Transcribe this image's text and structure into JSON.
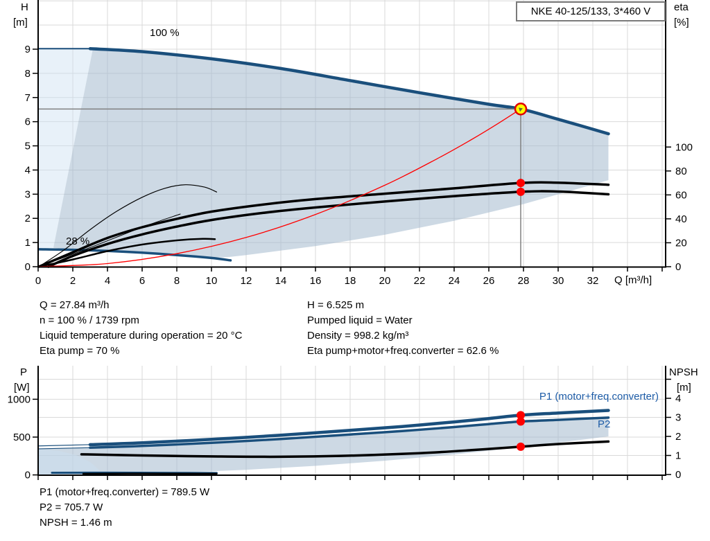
{
  "title_box": "NKE 40-125/133, 3*460 V",
  "colors": {
    "navy": "#1a4f7c",
    "red": "#ff0000",
    "yellow": "#ffff00",
    "label_blue": "#1c5ba6",
    "grid": "#d9d9d9",
    "axis": "#000000",
    "crosshair": "#808080",
    "fill_light": "rgba(205,224,242,0.45)",
    "fill_range": "rgba(164,186,205,0.55)"
  },
  "top_chart": {
    "y_left_title_1": "H",
    "y_left_title_2": "[m]",
    "y_right_title_1": "eta",
    "y_right_title_2": "[%]",
    "x_axis_title": "Q [m³/h]",
    "label_max_speed": "100 %",
    "label_min_speed": "28 %"
  },
  "bottom_chart": {
    "y_left_title_1": "P",
    "y_left_title_2": "[W]",
    "y_right_title_1": "NPSH",
    "y_right_title_2": "[m]",
    "label_p1": "P1 (motor+freq.converter)",
    "label_p2": "P2"
  },
  "info_top_left": [
    "Q = 27.84 m³/h",
    "n = 100 % / 1739 rpm",
    "Liquid temperature during operation = 20 °C",
    "Eta pump = 70 %"
  ],
  "info_top_right": [
    "H = 6.525 m",
    "Pumped liquid = Water",
    "Density = 998.2 kg/m³",
    "Eta pump+motor+freq.converter = 62.6 %"
  ],
  "info_bottom": [
    "P1 (motor+freq.converter) = 789.5 W",
    "P2 = 705.7 W",
    "NPSH = 1.46 m"
  ],
  "chart_data": [
    {
      "type": "line",
      "title": "QH curve with efficiency",
      "xlabel": "Q [m³/h]",
      "ylabel_left": "H [m]",
      "ylabel_right": "eta [%]",
      "x_range": [
        0,
        36.2
      ],
      "y_left_range": [
        0,
        11
      ],
      "y_right_range": [
        0,
        100
      ],
      "grid": true,
      "x_ticks": [
        0,
        2,
        4,
        6,
        8,
        10,
        12,
        14,
        16,
        18,
        20,
        22,
        24,
        26,
        28,
        30,
        32
      ],
      "y_left_ticks": [
        0,
        1,
        2,
        3,
        4,
        5,
        6,
        7,
        8,
        9
      ],
      "y_right_ticks": [
        0,
        20,
        40,
        60,
        80,
        100
      ],
      "duty_point": {
        "q": 27.84,
        "h": 6.525
      },
      "series": [
        {
          "name": "head-100-lead",
          "axis": "h",
          "color": "#1a4f7c",
          "width": 2,
          "q": [
            0.04,
            3.0
          ],
          "v": [
            9.02,
            9.02
          ]
        },
        {
          "name": "head-100",
          "axis": "h",
          "color": "#1a4f7c",
          "width": 4.5,
          "q": [
            3.0,
            6,
            10,
            14,
            18,
            22,
            26,
            27.84,
            30,
            32.9
          ],
          "v": [
            9.02,
            8.9,
            8.6,
            8.2,
            7.7,
            7.2,
            6.72,
            6.525,
            6.1,
            5.5
          ]
        },
        {
          "name": "head-28",
          "axis": "h",
          "color": "#1a4f7c",
          "width": 3.5,
          "q": [
            0.04,
            2,
            4,
            6,
            8,
            10,
            11.1
          ],
          "v": [
            0.72,
            0.7,
            0.65,
            0.58,
            0.48,
            0.36,
            0.26
          ]
        },
        {
          "name": "eta-pump",
          "axis": "eta",
          "color": "#000000",
          "width": 3.5,
          "q": [
            0.04,
            2,
            4,
            6,
            8,
            10,
            13,
            16,
            20,
            24,
            27.84,
            30,
            32.9
          ],
          "v": [
            0,
            12,
            24,
            33,
            40,
            46,
            52,
            56.5,
            61,
            65.5,
            70,
            70.2,
            68.5
          ]
        },
        {
          "name": "eta-pump-motor-freq",
          "axis": "eta",
          "color": "#000000",
          "width": 3.5,
          "q": [
            0.6,
            2,
            4,
            6,
            8,
            10,
            13,
            16,
            20,
            24,
            27.84,
            30,
            32.9
          ],
          "v": [
            0,
            9,
            19,
            27,
            33.5,
            39,
            45,
            49.5,
            54.5,
            59,
            62.6,
            62.8,
            60.5
          ]
        },
        {
          "name": "eta-pump-reduced",
          "axis": "eta",
          "color": "#000000",
          "width": 1.2,
          "q": [
            0.04,
            1.5,
            3,
            4.5,
            6,
            7.3,
            8.5,
            9.6,
            10.3
          ],
          "v": [
            0,
            14,
            31,
            46,
            58,
            65.5,
            68.5,
            66.5,
            62.4
          ]
        },
        {
          "name": "eta-total-reduced",
          "axis": "eta",
          "color": "#000000",
          "width": 2.5,
          "q": [
            0.04,
            2,
            4,
            6,
            8,
            9.5,
            10.2
          ],
          "v": [
            0,
            6,
            13,
            18.5,
            22,
            23.3,
            23.0
          ]
        },
        {
          "name": "eta-strand",
          "axis": "eta",
          "color": "#000000",
          "width": 1,
          "q": [
            0.04,
            3,
            6,
            8.2
          ],
          "v": [
            0,
            16,
            33,
            44
          ]
        },
        {
          "name": "control-curve",
          "axis": "h",
          "color": "#ff0000",
          "width": 1.3,
          "q": [
            0,
            4,
            8,
            12,
            16,
            20,
            23,
            25,
            26.5,
            27.84
          ],
          "v": [
            0,
            0.13,
            0.54,
            1.21,
            2.16,
            3.37,
            4.46,
            5.26,
            5.91,
            6.525
          ]
        }
      ],
      "markers": [
        {
          "axis": "eta",
          "q": 27.84,
          "v": 70
        },
        {
          "axis": "eta",
          "q": 27.84,
          "v": 62.6
        }
      ],
      "envelope": [
        [
          3.16,
          9.02
        ],
        [
          6,
          8.9
        ],
        [
          10,
          8.6
        ],
        [
          14,
          8.2
        ],
        [
          18,
          7.7
        ],
        [
          22,
          7.2
        ],
        [
          26,
          6.72
        ],
        [
          27.84,
          6.525
        ],
        [
          30,
          6.1
        ],
        [
          32.9,
          5.5
        ],
        [
          32.9,
          3.58
        ],
        [
          28,
          2.59
        ],
        [
          24,
          1.9
        ],
        [
          20,
          1.32
        ],
        [
          16,
          0.85
        ],
        [
          12,
          0.48
        ],
        [
          11.1,
          0.41
        ],
        [
          10,
          0.36
        ],
        [
          8,
          0.48
        ],
        [
          6,
          0.58
        ],
        [
          4,
          0.65
        ],
        [
          2,
          0.7
        ],
        [
          0.88,
          0.78
        ]
      ],
      "light_region": [
        [
          0.04,
          9.02
        ],
        [
          3.16,
          9.02
        ],
        [
          0.88,
          0.78
        ],
        [
          0.04,
          0.72
        ]
      ]
    },
    {
      "type": "line",
      "title": "Power and NPSH curves",
      "xlabel": "Q [m³/h]",
      "ylabel_left": "P [W]",
      "ylabel_right": "NPSH [m]",
      "x_range": [
        0,
        36.2
      ],
      "y_left_range": [
        0,
        1450
      ],
      "y_right_range": [
        0,
        5.7
      ],
      "grid": true,
      "y_left_ticks": [
        0,
        500,
        1000
      ],
      "y_right_ticks": [
        0,
        1,
        2,
        3,
        4
      ],
      "series": [
        {
          "name": "p1-lead",
          "axis": "p",
          "color": "#1a4f7c",
          "width": 1.2,
          "q": [
            0.04,
            3
          ],
          "v": [
            383,
            400
          ]
        },
        {
          "name": "p2-lead",
          "axis": "p",
          "color": "#1a4f7c",
          "width": 1.2,
          "q": [
            0.04,
            3
          ],
          "v": [
            345,
            360
          ]
        },
        {
          "name": "p1",
          "axis": "p",
          "color": "#1a4f7c",
          "width": 4.5,
          "q": [
            3,
            6,
            10,
            14,
            18,
            21,
            24,
            26,
            27.84,
            30,
            32.9
          ],
          "v": [
            400,
            425,
            470,
            525,
            590,
            640,
            700,
            745,
            789.5,
            818,
            852
          ]
        },
        {
          "name": "p2",
          "axis": "p",
          "color": "#1a4f7c",
          "width": 3.5,
          "q": [
            3,
            6,
            10,
            14,
            18,
            21,
            24,
            26,
            27.84,
            30,
            32.9
          ],
          "v": [
            360,
            383,
            425,
            475,
            535,
            580,
            633,
            672,
            705.7,
            728,
            757
          ]
        },
        {
          "name": "p-28",
          "axis": "p",
          "color": "#1a4f7c",
          "width": 3,
          "q": [
            0.8,
            4,
            8,
            10.3
          ],
          "v": [
            28,
            29,
            27,
            25
          ]
        },
        {
          "name": "npsh",
          "axis": "npsh",
          "color": "#000000",
          "width": 3.5,
          "q": [
            2.5,
            6,
            10,
            14,
            18,
            22,
            25,
            27.84,
            30,
            32.9
          ],
          "v": [
            1.06,
            1.0,
            0.95,
            0.93,
            0.99,
            1.12,
            1.28,
            1.46,
            1.6,
            1.73
          ]
        },
        {
          "name": "npsh-28",
          "axis": "npsh",
          "color": "#000000",
          "width": 2.5,
          "q": [
            2.6,
            6,
            10.3
          ],
          "v": [
            0.04,
            0.05,
            0.04
          ]
        }
      ],
      "markers": [
        {
          "axis": "p",
          "q": 27.84,
          "v": 789.5
        },
        {
          "axis": "p",
          "q": 27.84,
          "v": 705.7
        },
        {
          "axis": "npsh",
          "q": 27.84,
          "v": 1.46
        }
      ],
      "envelope": [
        [
          3,
          360
        ],
        [
          6,
          383
        ],
        [
          10,
          425
        ],
        [
          14,
          475
        ],
        [
          18,
          535
        ],
        [
          21,
          580
        ],
        [
          24,
          633
        ],
        [
          26,
          672
        ],
        [
          27.84,
          705.7
        ],
        [
          30,
          728
        ],
        [
          32.9,
          757
        ],
        [
          32.9,
          509
        ],
        [
          28,
          369
        ],
        [
          24,
          271
        ],
        [
          20,
          188
        ],
        [
          16,
          120
        ],
        [
          12,
          68
        ],
        [
          8,
          30
        ],
        [
          5,
          12
        ],
        [
          3.4,
          0
        ],
        [
          0.04,
          0
        ],
        [
          0.04,
          345
        ]
      ],
      "light_region": [
        [
          0.04,
          340
        ],
        [
          1.2,
          318
        ],
        [
          2.2,
          262
        ],
        [
          3.0,
          170
        ],
        [
          3.5,
          70
        ],
        [
          3.7,
          0
        ],
        [
          0.04,
          0
        ]
      ]
    }
  ]
}
